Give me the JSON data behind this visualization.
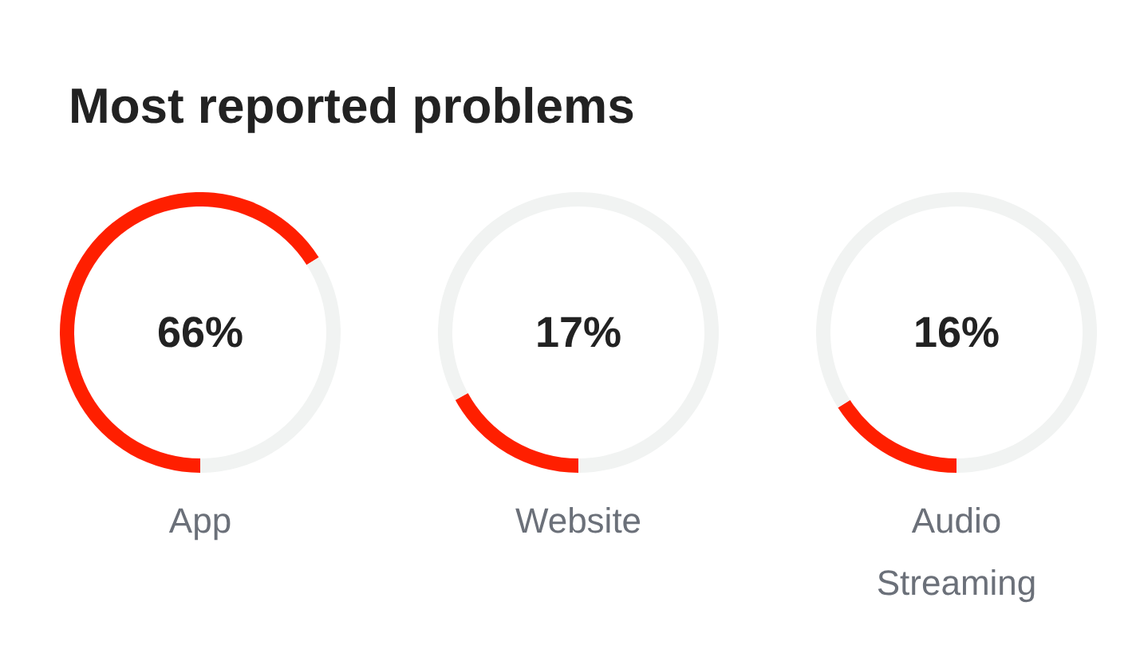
{
  "chart_data": [
    {
      "type": "donut",
      "title": "Most reported problems",
      "categories": [
        "App",
        null
      ],
      "values": [
        66,
        34
      ],
      "colors": [
        "#ff1f00",
        "#f1f3f2"
      ],
      "annotations": [
        "66%"
      ]
    },
    {
      "type": "donut",
      "categories": [
        "Website",
        null
      ],
      "values": [
        17,
        83
      ],
      "colors": [
        "#ff1f00",
        "#f1f3f2"
      ],
      "annotations": [
        "17%"
      ]
    },
    {
      "type": "donut",
      "categories": [
        "Audio Streaming",
        null
      ],
      "values": [
        16,
        84
      ],
      "colors": [
        "#ff1f00",
        "#f1f3f2"
      ],
      "annotations": [
        "16%"
      ]
    }
  ]
}
